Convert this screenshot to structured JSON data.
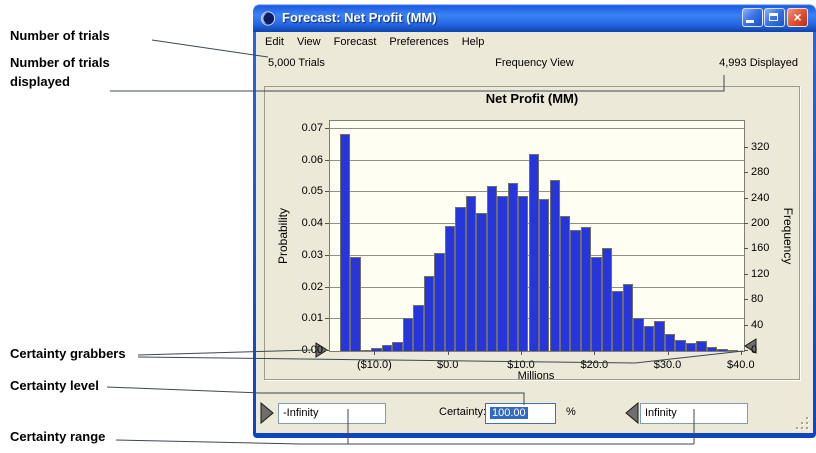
{
  "annotations": {
    "trials_label": "Number of trials",
    "displayed_label": "Number of trials displayed",
    "grabbers_label": "Certainty grabbers",
    "level_label": "Certainty level",
    "range_label": "Certainty range"
  },
  "window": {
    "title": "Forecast: Net Profit (MM)",
    "close_glyph": "×",
    "menu": [
      "Edit",
      "View",
      "Forecast",
      "Preferences",
      "Help"
    ],
    "status": {
      "trials": "5,000 Trials",
      "view": "Frequency View",
      "displayed": "4,993 Displayed"
    },
    "controls": {
      "range_min": "-Infinity",
      "certainty_label": "Certainty:",
      "certainty_value": "100.00",
      "percent_sign": "%",
      "range_max": "Infinity"
    }
  },
  "chart_data": {
    "type": "bar",
    "title": "Net Profit (MM)",
    "xlabel": "Millions",
    "ylabel_left": "Probability",
    "ylabel_right": "Frequency",
    "x_tick_labels": [
      "($10.0)",
      "$0.0",
      "$10.0",
      "$20.0",
      "$30.0",
      "$40.0"
    ],
    "x_tick_values": [
      -10,
      0,
      10,
      20,
      30,
      40
    ],
    "y_left_tick_labels": [
      "0.00",
      "0.01",
      "0.02",
      "0.03",
      "0.04",
      "0.05",
      "0.06",
      "0.07"
    ],
    "y_right_tick_values": [
      0,
      40,
      80,
      120,
      160,
      200,
      240,
      280,
      320
    ],
    "xlim": [
      -16.2,
      40.3
    ],
    "ylim": [
      0,
      0.0725
    ],
    "grid": "horizontal",
    "legend": "none",
    "trials": 5000,
    "displayed": 4993,
    "first_bin_left": -14.85,
    "bin_width": 1.43,
    "values": [
      0.0685,
      0.0295,
      0,
      0.001,
      0.002,
      0.003,
      0.0105,
      0.0145,
      0.0235,
      0.031,
      0.0395,
      0.0455,
      0.049,
      0.0435,
      0.052,
      0.049,
      0.053,
      0.049,
      0.062,
      0.048,
      0.054,
      0.0425,
      0.038,
      0.039,
      0.0295,
      0.0325,
      0.019,
      0.021,
      0.0105,
      0.008,
      0.0095,
      0.0055,
      0.0035,
      0.0026,
      0.0032,
      0.0013,
      0.0005,
      0.0002
    ],
    "colors": {
      "bar": "#2735dc",
      "plot_bg": "#fffef2",
      "panel_bg": "#ece9d8",
      "selection": "#316ac5",
      "titlebar": "#2767e4"
    }
  }
}
